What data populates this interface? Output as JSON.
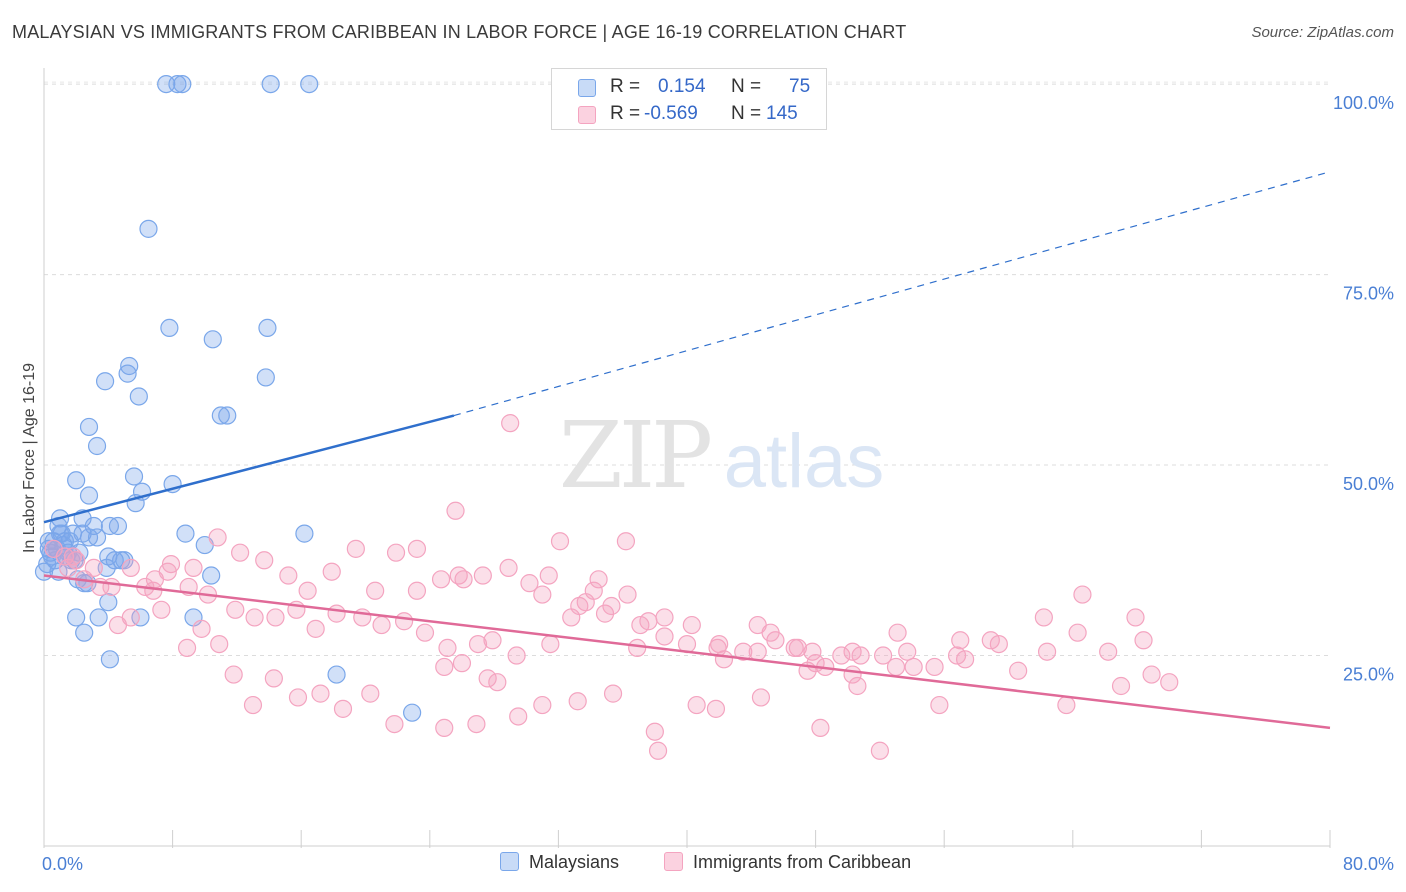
{
  "chart_data": {
    "type": "scatter",
    "title": "MALAYSIAN VS IMMIGRANTS FROM CARIBBEAN IN LABOR FORCE | AGE 16-19 CORRELATION CHART",
    "source": "Source: ZipAtlas.com",
    "ylabel": "In Labor Force | Age 16-19",
    "xlim": [
      0,
      80
    ],
    "ylim": [
      0,
      105
    ],
    "x_tick_labels": [
      "0.0%",
      "80.0%"
    ],
    "y_ticks": [
      {
        "value": 25,
        "label": "25.0%"
      },
      {
        "value": 50,
        "label": "50.0%"
      },
      {
        "value": 75,
        "label": "75.0%"
      },
      {
        "value": 100,
        "label": "100.0%"
      }
    ],
    "grid": "horizontal-dashed",
    "legend_placement": "top-center",
    "watermark": {
      "zip": "ZIP",
      "atlas": "atlas"
    },
    "series": [
      {
        "name": "Malaysians",
        "color": "#7aa7ea",
        "line_color": "#2f6fcc",
        "stats": {
          "r_label": "R =",
          "r_value": "0.154",
          "n_label": "N =",
          "n_value": "75"
        },
        "trend": {
          "x0": 0,
          "y0": 42.5,
          "x1": 25.5,
          "y1": 56.5,
          "x_ext": 80,
          "y_ext": 88.5
        },
        "x": [
          7.6,
          8.3,
          8.6,
          14.1,
          16.5,
          6.5,
          7.8,
          13.9,
          10.5,
          11.0,
          11.4,
          5.3,
          5.2,
          2.8,
          3.3,
          5.9,
          3.8,
          2.0,
          6.1,
          8.0,
          5.7,
          2.8,
          5.6,
          4.6,
          2.4,
          3.1,
          2.8,
          1.0,
          1.8,
          2.4,
          3.3,
          4.8,
          4.0,
          0.3,
          0.6,
          0.8,
          1.1,
          1.5,
          0.5,
          0.9,
          1.3,
          1.9,
          2.2,
          0.4,
          2.7,
          3.4,
          4.0,
          4.4,
          2.0,
          2.5,
          6.0,
          9.3,
          10.4,
          2.5,
          3.9,
          4.1,
          10.0,
          8.8,
          13.8,
          16.2,
          18.2,
          22.9,
          0.2,
          0.7,
          1.2,
          1.6,
          1.0,
          1.7,
          4.1,
          5.0,
          2.1,
          1.4,
          0.9,
          0.3,
          0.0
        ],
        "y": [
          100,
          100,
          100,
          100,
          100,
          81,
          68,
          68,
          66.5,
          56.5,
          56.5,
          63,
          62,
          55,
          52.5,
          59,
          61,
          48,
          46.5,
          47.5,
          45,
          46,
          48.5,
          42,
          43,
          42,
          40.5,
          43,
          41,
          41,
          40.5,
          37.5,
          38,
          39,
          40,
          39,
          41,
          38.5,
          38,
          42,
          40,
          37.5,
          38.5,
          38.5,
          34.5,
          30,
          32,
          37.5,
          30,
          28,
          30,
          30,
          35.5,
          34.5,
          36.5,
          24.5,
          39.5,
          41,
          61.5,
          41,
          22.5,
          17.5,
          37,
          37.5,
          39.5,
          40,
          41,
          37.5,
          42,
          37.5,
          35,
          38,
          36,
          40,
          36
        ]
      },
      {
        "name": "Immigrants from Caribbean",
        "color": "#f4a4c0",
        "line_color": "#e06a98",
        "stats": {
          "r_label": "R =",
          "r_value": "-0.569",
          "n_label": "N =",
          "n_value": "145"
        },
        "trend": {
          "x0": 0,
          "y0": 35.5,
          "x1": 80,
          "y1": 15.5
        },
        "x": [
          29.0,
          25.6,
          25.8,
          23.2,
          32.1,
          24.9,
          34.5,
          36.2,
          37.6,
          34.2,
          33.3,
          31.0,
          38.6,
          26.0,
          27.9,
          27.6,
          32.8,
          36.9,
          40.0,
          42.3,
          41.9,
          44.4,
          45.5,
          46.7,
          47.8,
          47.5,
          50.3,
          48.0,
          49.6,
          50.3,
          52.2,
          53.7,
          54.1,
          57.3,
          58.9,
          59.4,
          64.6,
          68.4,
          70.0,
          68.9,
          62.2,
          56.8,
          53.0,
          50.6,
          44.6,
          40.6,
          38.0,
          35.4,
          33.2,
          31.0,
          29.5,
          28.2,
          26.9,
          24.9,
          21.8,
          20.3,
          18.6,
          17.2,
          15.8,
          14.3,
          13.0,
          11.8,
          10.9,
          9.8,
          8.9,
          7.3,
          6.8,
          5.4,
          4.6,
          3.5,
          2.5,
          1.5,
          5.4,
          6.9,
          7.9,
          9.3,
          10.8,
          12.2,
          13.7,
          15.2,
          16.4,
          17.9,
          19.4,
          20.6,
          21.9,
          23.2,
          24.7,
          26.1,
          27.3,
          28.9,
          30.2,
          31.4,
          33.7,
          34.9,
          36.3,
          37.1,
          38.6,
          40.3,
          42.0,
          43.5,
          45.2,
          46.9,
          48.6,
          50.8,
          53.1,
          55.4,
          57.0,
          60.6,
          62.4,
          64.3,
          66.2,
          67.9,
          67.0,
          63.6,
          55.7,
          52.0,
          48.3,
          44.4,
          41.8,
          38.2,
          35.3,
          31.5,
          29.4,
          27.0,
          25.1,
          23.7,
          22.4,
          21.0,
          19.8,
          18.2,
          16.9,
          15.7,
          14.4,
          13.1,
          11.9,
          10.2,
          9.0,
          7.7,
          6.3,
          4.2,
          3.1,
          2.0,
          1.3,
          0.6,
          1.8
        ],
        "y": [
          55.5,
          44,
          35.5,
          39,
          40,
          23.5,
          35,
          40,
          29.5,
          33.5,
          31.5,
          33,
          27.5,
          24,
          27,
          22,
          30,
          26,
          26.5,
          24.5,
          26,
          25.5,
          27,
          26,
          25.5,
          23,
          25.5,
          24,
          25,
          22.5,
          25,
          25.5,
          23.5,
          24.5,
          27,
          26.5,
          33,
          27,
          21.5,
          22.5,
          30,
          25,
          23.5,
          21,
          19.5,
          18.5,
          15,
          20,
          19,
          18.5,
          17,
          21.5,
          16,
          15.5,
          16,
          20,
          18,
          20,
          19.5,
          22,
          18.5,
          22.5,
          26.5,
          28.5,
          26,
          31,
          33.5,
          30,
          29,
          34,
          35,
          36.5,
          36.5,
          35,
          37,
          36.5,
          40.5,
          38.5,
          37.5,
          35.5,
          33.5,
          36,
          39,
          33.5,
          38.5,
          33.5,
          35,
          35,
          35.5,
          36.5,
          34.5,
          35.5,
          32,
          30.5,
          33,
          29,
          30,
          29,
          26.5,
          25.5,
          28,
          26,
          23.5,
          25,
          28,
          23.5,
          27,
          23,
          25.5,
          28,
          25.5,
          30,
          21,
          18.5,
          18.5,
          12.5,
          15.5,
          29,
          18,
          12.5,
          31.5,
          26.5,
          25,
          26.5,
          26,
          28,
          29.5,
          29,
          30,
          30.5,
          28.5,
          31,
          30,
          30,
          31,
          33,
          34,
          36,
          34,
          34,
          36.5,
          37.5,
          38,
          39,
          38
        ]
      }
    ]
  }
}
